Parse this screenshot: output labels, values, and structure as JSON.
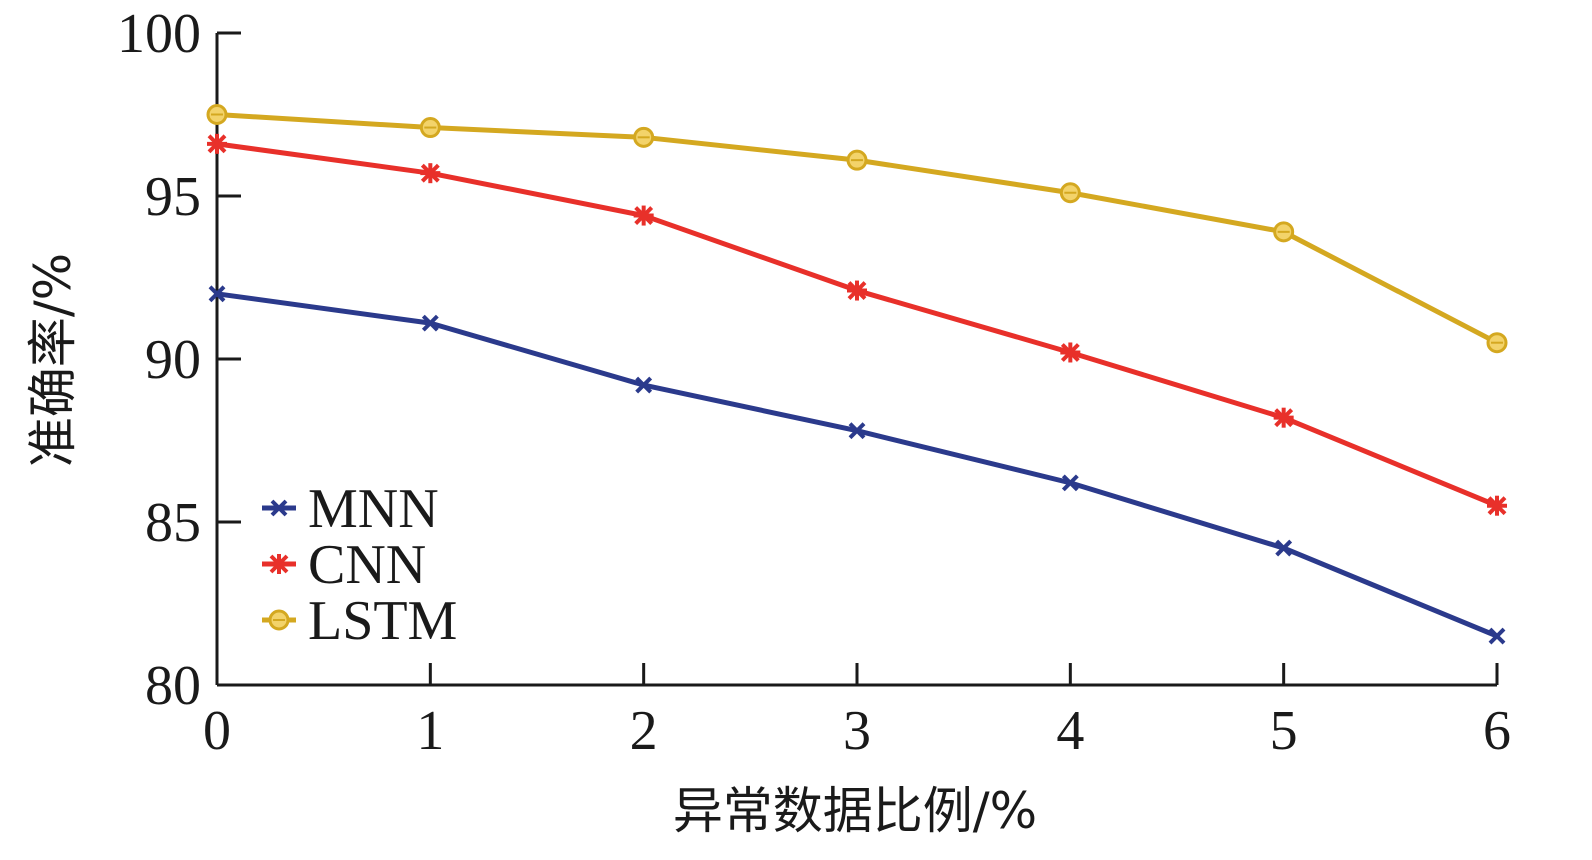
{
  "chart_data": {
    "type": "line",
    "title": "",
    "xlabel": "异常数据比例/%",
    "ylabel": "准确率/%",
    "x": [
      0,
      1,
      2,
      3,
      4,
      5,
      6
    ],
    "x_ticks": [
      "0",
      "1",
      "2",
      "3",
      "4",
      "5",
      "6"
    ],
    "y_ticks": [
      "80",
      "85",
      "90",
      "95",
      "100"
    ],
    "xlim": [
      0,
      6
    ],
    "ylim": [
      80,
      100
    ],
    "grid": false,
    "legend_position": "bottom-left",
    "series": [
      {
        "name": "MNN",
        "values": [
          92.0,
          91.1,
          89.2,
          87.8,
          86.2,
          84.2,
          81.5
        ],
        "color": "#2b3a8c",
        "marker": "x"
      },
      {
        "name": "CNN",
        "values": [
          96.6,
          95.7,
          94.4,
          92.1,
          90.2,
          88.2,
          85.5
        ],
        "color": "#e8302a",
        "marker": "star"
      },
      {
        "name": "LSTM",
        "values": [
          97.5,
          97.1,
          96.8,
          96.1,
          95.1,
          93.9,
          90.5
        ],
        "color": "#d4a820",
        "marker": "circle"
      }
    ]
  }
}
